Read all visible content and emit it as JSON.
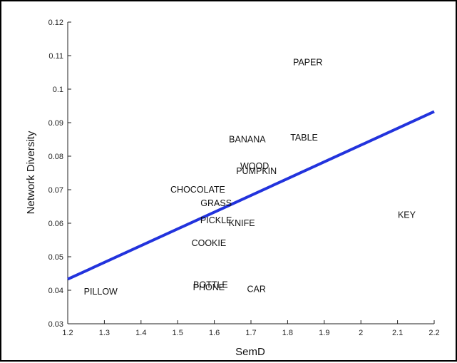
{
  "chart_data": {
    "type": "scatter",
    "title": "",
    "xlabel": "SemD",
    "ylabel": "Network Diversity",
    "xlim": [
      1.2,
      2.2
    ],
    "ylim": [
      0.03,
      0.12
    ],
    "x_ticks": [
      1.2,
      1.3,
      1.4,
      1.5,
      1.6,
      1.7,
      1.8,
      1.9,
      2,
      2.1,
      2.2
    ],
    "x_tick_labels": [
      "1.2",
      "1.3",
      "1.4",
      "1.5",
      "1.6",
      "1.7",
      "1.8",
      "1.9",
      "2",
      "2.1",
      "2.2"
    ],
    "y_ticks": [
      0.03,
      0.04,
      0.05,
      0.06,
      0.07,
      0.08,
      0.09,
      0.1,
      0.11,
      0.12
    ],
    "y_tick_labels": [
      "0.03",
      "0.04",
      "0.05",
      "0.06",
      "0.07",
      "0.08",
      "0.09",
      "0.1",
      "0.11",
      "0.12"
    ],
    "grid": false,
    "points": [
      {
        "label": "PAPER",
        "x": 1.855,
        "y": 0.108
      },
      {
        "label": "TABLE",
        "x": 1.845,
        "y": 0.0855
      },
      {
        "label": "BANANA",
        "x": 1.69,
        "y": 0.085
      },
      {
        "label": "WOOD",
        "x": 1.71,
        "y": 0.077
      },
      {
        "label": "PUMPKIN",
        "x": 1.715,
        "y": 0.0755
      },
      {
        "label": "CHOCOLATE",
        "x": 1.555,
        "y": 0.07
      },
      {
        "label": "GRASS",
        "x": 1.605,
        "y": 0.066
      },
      {
        "label": "PICKLE",
        "x": 1.605,
        "y": 0.0608
      },
      {
        "label": "KNIFE",
        "x": 1.675,
        "y": 0.06
      },
      {
        "label": "KEY",
        "x": 2.125,
        "y": 0.0625
      },
      {
        "label": "COOKIE",
        "x": 1.585,
        "y": 0.054
      },
      {
        "label": "BOTTLE",
        "x": 1.59,
        "y": 0.0416
      },
      {
        "label": "PHONE",
        "x": 1.585,
        "y": 0.0408
      },
      {
        "label": "CAR",
        "x": 1.715,
        "y": 0.0403
      },
      {
        "label": "PILLOW",
        "x": 1.29,
        "y": 0.0396
      }
    ],
    "fit_line": {
      "x": [
        1.2,
        2.2
      ],
      "y": [
        0.0433,
        0.0933
      ],
      "color": "#2233dd"
    }
  }
}
